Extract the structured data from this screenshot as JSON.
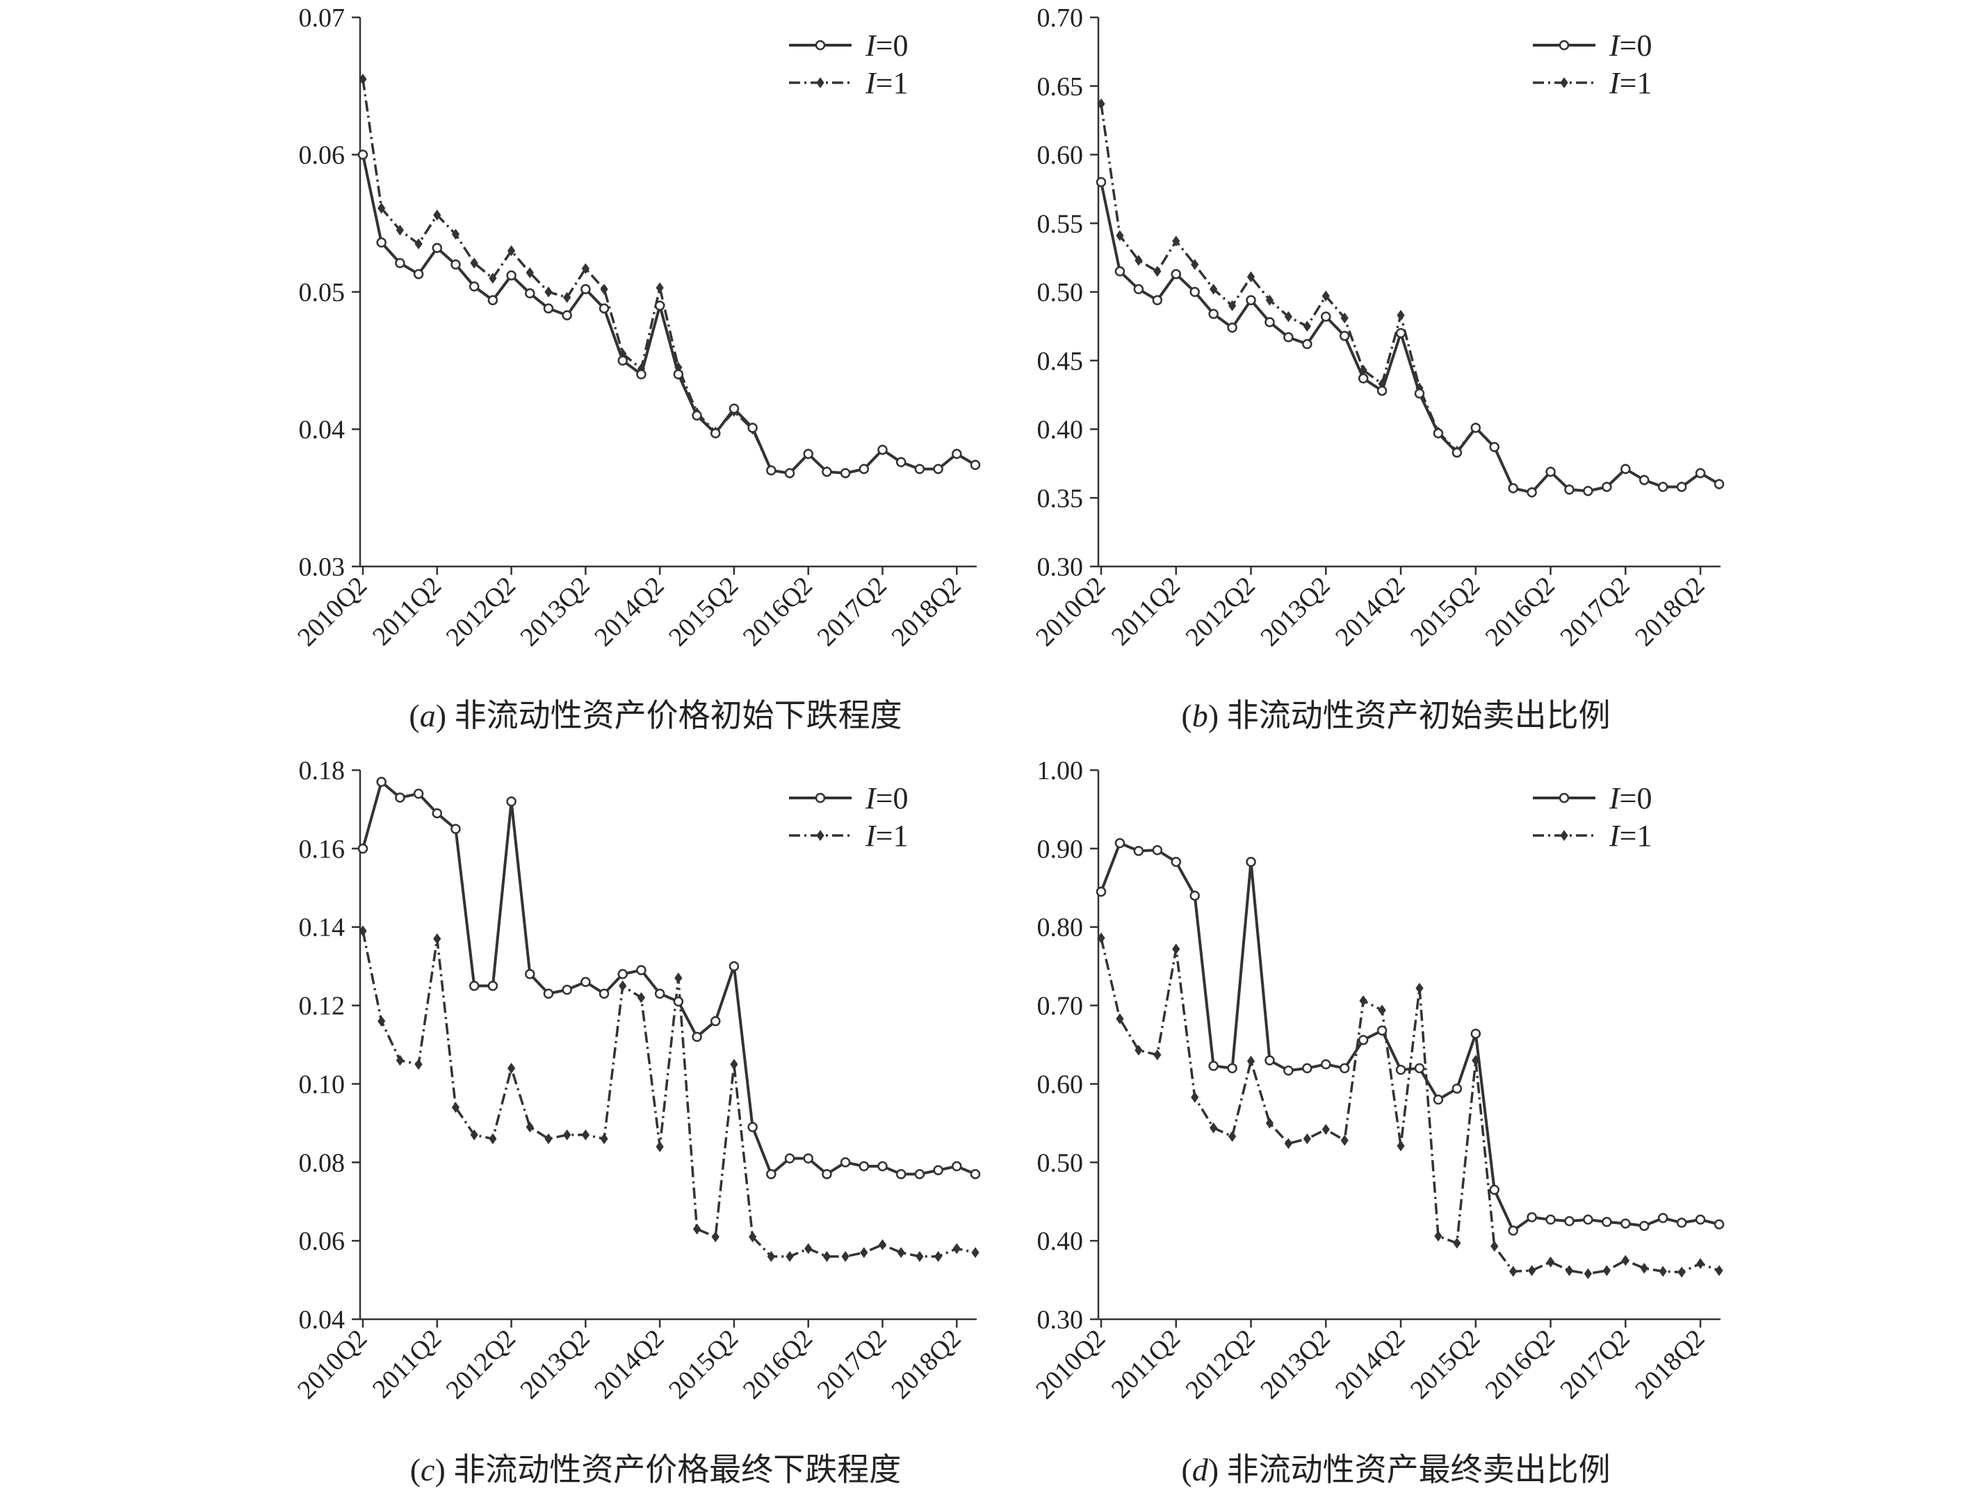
{
  "chart_data": [
    {
      "type": "line",
      "caption_letter": "a",
      "caption_text": "非流动性资产价格初始下跌程度",
      "ylim": [
        0.03,
        0.07
      ],
      "yticks": [
        "0.03",
        "0.04",
        "0.05",
        "0.06",
        "0.07"
      ],
      "x_tick_labels": [
        "2010Q2",
        "2011Q2",
        "2012Q2",
        "2013Q2",
        "2014Q2",
        "2015Q2",
        "2016Q2",
        "2017Q2",
        "2018Q2"
      ],
      "legend_placement": "top-right",
      "series": [
        {
          "name_var": "I",
          "name_val": "=0",
          "values": [
            0.06,
            0.0536,
            0.0521,
            0.0513,
            0.0532,
            0.052,
            0.0504,
            0.0494,
            0.0512,
            0.0499,
            0.0488,
            0.0483,
            0.0502,
            0.0488,
            0.045,
            0.044,
            0.049,
            0.044,
            0.041,
            0.0397,
            0.0415,
            0.0401,
            0.037,
            0.0368,
            0.0382,
            0.0369,
            0.0368,
            0.0371,
            0.0385,
            0.0376,
            0.0371,
            0.0371,
            0.0382,
            0.0374
          ]
        },
        {
          "name_var": "I",
          "name_val": "=1",
          "values": [
            0.0655,
            0.0561,
            0.0545,
            0.0535,
            0.0556,
            0.0542,
            0.0521,
            0.051,
            0.053,
            0.0514,
            0.05,
            0.0496,
            0.0517,
            0.0502,
            0.0455,
            0.0444,
            0.0503,
            0.0445,
            0.0412,
            0.0398,
            0.0413,
            0.04,
            0.037,
            0.0368,
            0.0382,
            0.0369,
            0.0368,
            0.0371,
            0.0385,
            0.0376,
            0.0371,
            0.0371,
            0.0382,
            0.0374
          ]
        }
      ]
    },
    {
      "type": "line",
      "caption_letter": "b",
      "caption_text": "非流动性资产初始卖出比例",
      "ylim": [
        0.3,
        0.7
      ],
      "yticks": [
        "0.30",
        "0.35",
        "0.40",
        "0.45",
        "0.50",
        "0.55",
        "0.60",
        "0.65",
        "0.70"
      ],
      "x_tick_labels": [
        "2010Q2",
        "2011Q2",
        "2012Q2",
        "2013Q2",
        "2014Q2",
        "2015Q2",
        "2016Q2",
        "2017Q2",
        "2018Q2"
      ],
      "legend_placement": "top-right",
      "series": [
        {
          "name_var": "I",
          "name_val": "=0",
          "values": [
            0.58,
            0.515,
            0.502,
            0.494,
            0.513,
            0.5,
            0.484,
            0.474,
            0.494,
            0.478,
            0.467,
            0.462,
            0.482,
            0.468,
            0.437,
            0.428,
            0.47,
            0.426,
            0.397,
            0.383,
            0.401,
            0.387,
            0.357,
            0.354,
            0.369,
            0.356,
            0.355,
            0.358,
            0.371,
            0.363,
            0.358,
            0.358,
            0.368,
            0.36
          ]
        },
        {
          "name_var": "I",
          "name_val": "=1",
          "values": [
            0.637,
            0.541,
            0.523,
            0.515,
            0.537,
            0.52,
            0.502,
            0.49,
            0.511,
            0.494,
            0.482,
            0.475,
            0.497,
            0.481,
            0.443,
            0.433,
            0.483,
            0.43,
            0.398,
            0.384,
            0.401,
            0.387,
            0.357,
            0.354,
            0.369,
            0.356,
            0.355,
            0.358,
            0.371,
            0.363,
            0.358,
            0.358,
            0.368,
            0.36
          ]
        }
      ]
    },
    {
      "type": "line",
      "caption_letter": "c",
      "caption_text": "非流动性资产价格最终下跌程度",
      "ylim": [
        0.04,
        0.18
      ],
      "yticks": [
        "0.04",
        "0.06",
        "0.08",
        "0.10",
        "0.12",
        "0.14",
        "0.16",
        "0.18"
      ],
      "x_tick_labels": [
        "2010Q2",
        "2011Q2",
        "2012Q2",
        "2013Q2",
        "2014Q2",
        "2015Q2",
        "2016Q2",
        "2017Q2",
        "2018Q2"
      ],
      "legend_placement": "top-right",
      "series": [
        {
          "name_var": "I",
          "name_val": "=0",
          "values": [
            0.16,
            0.177,
            0.173,
            0.174,
            0.169,
            0.165,
            0.125,
            0.125,
            0.172,
            0.128,
            0.123,
            0.124,
            0.126,
            0.123,
            0.128,
            0.129,
            0.123,
            0.121,
            0.112,
            0.116,
            0.13,
            0.089,
            0.077,
            0.081,
            0.081,
            0.077,
            0.08,
            0.079,
            0.079,
            0.077,
            0.077,
            0.078,
            0.079,
            0.077
          ]
        },
        {
          "name_var": "I",
          "name_val": "=1",
          "values": [
            0.139,
            0.116,
            0.106,
            0.105,
            0.137,
            0.094,
            0.087,
            0.086,
            0.104,
            0.089,
            0.086,
            0.087,
            0.087,
            0.086,
            0.125,
            0.122,
            0.084,
            0.127,
            0.063,
            0.061,
            0.105,
            0.061,
            0.056,
            0.056,
            0.058,
            0.056,
            0.056,
            0.057,
            0.059,
            0.057,
            0.056,
            0.056,
            0.058,
            0.057
          ]
        }
      ]
    },
    {
      "type": "line",
      "caption_letter": "d",
      "caption_text": "非流动性资产最终卖出比例",
      "ylim": [
        0.3,
        1.0
      ],
      "yticks": [
        "0.30",
        "0.40",
        "0.50",
        "0.60",
        "0.70",
        "0.80",
        "0.90",
        "1.00"
      ],
      "x_tick_labels": [
        "2010Q2",
        "2011Q2",
        "2012Q2",
        "2013Q2",
        "2014Q2",
        "2015Q2",
        "2016Q2",
        "2017Q2",
        "2018Q2"
      ],
      "legend_placement": "top-right",
      "series": [
        {
          "name_var": "I",
          "name_val": "=0",
          "values": [
            0.845,
            0.907,
            0.897,
            0.898,
            0.883,
            0.84,
            0.623,
            0.62,
            0.883,
            0.63,
            0.617,
            0.62,
            0.625,
            0.62,
            0.656,
            0.668,
            0.618,
            0.62,
            0.58,
            0.594,
            0.664,
            0.465,
            0.413,
            0.43,
            0.427,
            0.425,
            0.427,
            0.424,
            0.422,
            0.419,
            0.429,
            0.423,
            0.427,
            0.421
          ]
        },
        {
          "name_var": "I",
          "name_val": "=1",
          "values": [
            0.786,
            0.683,
            0.643,
            0.637,
            0.772,
            0.583,
            0.544,
            0.533,
            0.629,
            0.55,
            0.524,
            0.53,
            0.542,
            0.528,
            0.706,
            0.694,
            0.521,
            0.722,
            0.406,
            0.397,
            0.63,
            0.393,
            0.361,
            0.362,
            0.373,
            0.362,
            0.358,
            0.362,
            0.375,
            0.365,
            0.361,
            0.36,
            0.371,
            0.362
          ]
        }
      ]
    }
  ]
}
